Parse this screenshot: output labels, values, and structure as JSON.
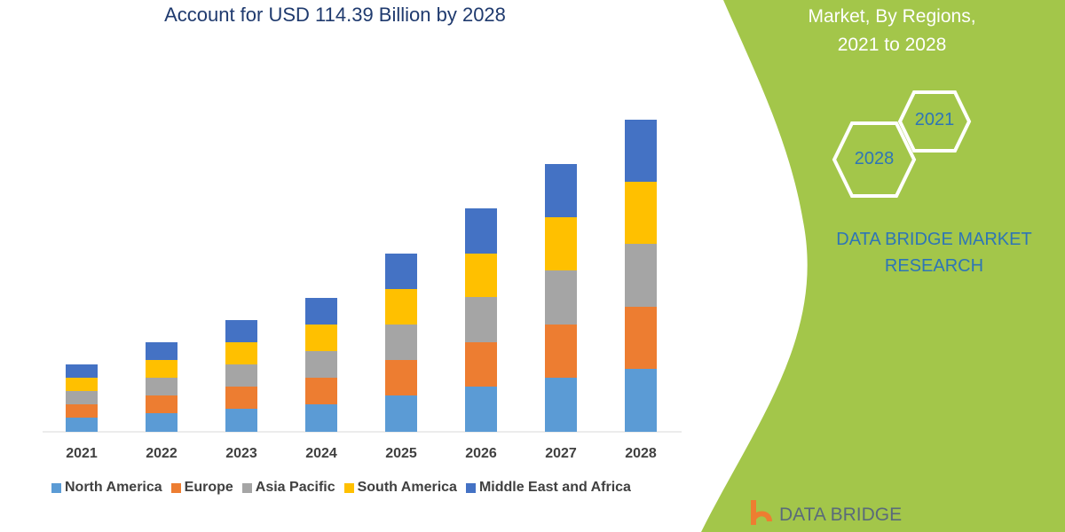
{
  "chart_data": {
    "type": "bar",
    "stacked": true,
    "title": "Account for USD 114.39 Billion by 2028",
    "categories": [
      "2021",
      "2022",
      "2023",
      "2024",
      "2025",
      "2026",
      "2027",
      "2028"
    ],
    "series": [
      {
        "name": "North America",
        "color": "#5b9bd5",
        "values": [
          16,
          21,
          26,
          31,
          41,
          51,
          61,
          71
        ]
      },
      {
        "name": "Europe",
        "color": "#ed7d31",
        "values": [
          15,
          20,
          25,
          30,
          40,
          50,
          60,
          70
        ]
      },
      {
        "name": "Asia Pacific",
        "color": "#a5a5a5",
        "values": [
          15,
          20,
          25,
          30,
          40,
          51,
          61,
          71
        ]
      },
      {
        "name": "South America",
        "color": "#ffc000",
        "values": [
          15,
          20,
          25,
          30,
          40,
          49,
          60,
          70
        ]
      },
      {
        "name": "Middle East and Africa",
        "color": "#4472c4",
        "values": [
          15,
          20,
          25,
          30,
          40,
          51,
          60,
          70
        ]
      }
    ],
    "ylim": [
      0,
      360
    ],
    "grid": false,
    "legend_position": "bottom"
  },
  "side_panel": {
    "title_line1": "Market, By Regions,",
    "title_line2": "2021 to 2028",
    "hex_start": "2021",
    "hex_end": "2028",
    "brand_line1": "DATA BRIDGE MARKET",
    "brand_line2": "RESEARCH",
    "logo_text": "DATA BRIDGE",
    "color": "#a3c64a"
  }
}
